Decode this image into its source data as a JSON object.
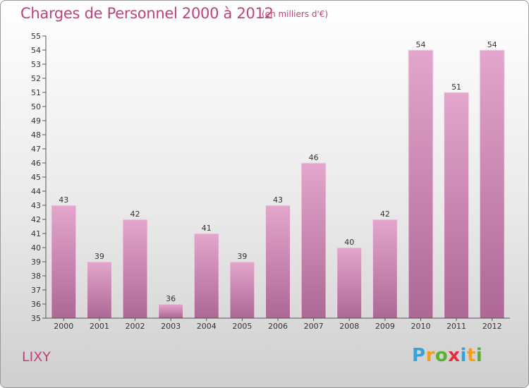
{
  "header": {
    "title": "Charges de Personnel 2000 à 2012",
    "subtitle": "(en milliers d'€)"
  },
  "footer": {
    "commune": "LIXY",
    "logo_letters": [
      "P",
      "r",
      "o",
      "x",
      "i",
      "t",
      "i"
    ],
    "logo_colors": [
      "#3aa0dc",
      "#f0a020",
      "#5ab030",
      "#e03040",
      "#3aa0dc",
      "#f0a020",
      "#5ab030"
    ]
  },
  "colors": {
    "bar_top": "#e3a6cc",
    "bar_bottom": "#ad6895",
    "text": "#333333",
    "title": "#c0417c"
  },
  "chart_data": {
    "type": "bar",
    "categories": [
      "2000",
      "2001",
      "2002",
      "2003",
      "2004",
      "2005",
      "2006",
      "2007",
      "2008",
      "2009",
      "2010",
      "2011",
      "2012"
    ],
    "values": [
      43,
      39,
      42,
      36,
      41,
      39,
      43,
      46,
      40,
      42,
      54,
      51,
      54
    ],
    "ylim": [
      35,
      55
    ],
    "yticks": [
      35,
      36,
      37,
      38,
      39,
      40,
      41,
      42,
      43,
      44,
      45,
      46,
      47,
      48,
      49,
      50,
      51,
      52,
      53,
      54,
      55
    ],
    "grid": false,
    "data_labels": true
  }
}
